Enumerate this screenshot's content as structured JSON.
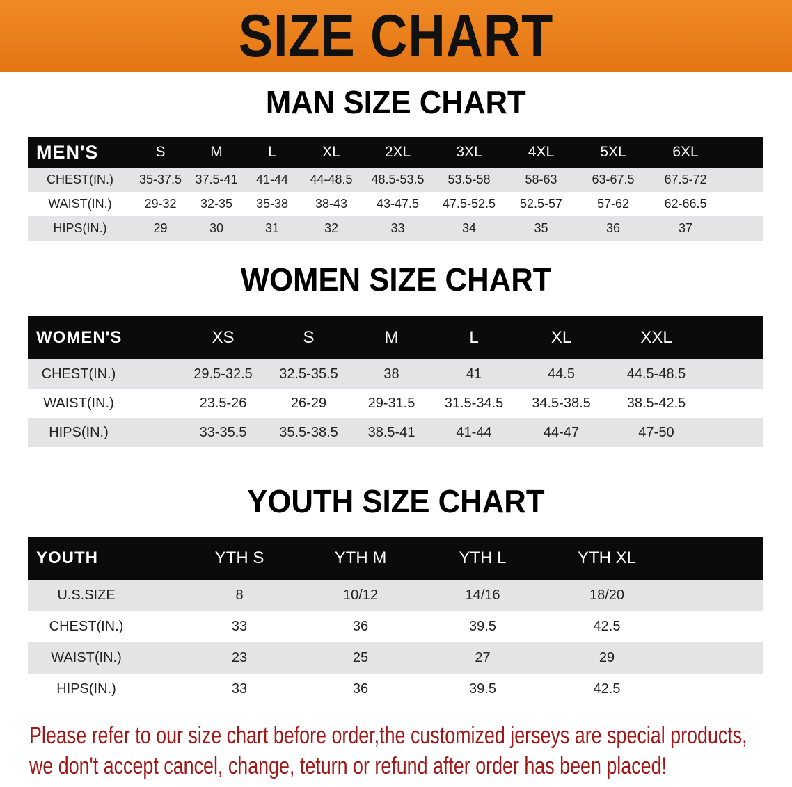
{
  "banner": {
    "title": "SIZE CHART",
    "color": "#e87f1a"
  },
  "men": {
    "title": "MAN SIZE CHART",
    "header": [
      "MEN'S",
      "S",
      "M",
      "L",
      "XL",
      "2XL",
      "3XL",
      "4XL",
      "5XL",
      "6XL"
    ],
    "rows": [
      [
        "CHEST(IN.)",
        "35-37.5",
        "37.5-41",
        "41-44",
        "44-48.5",
        "48.5-53.5",
        "53.5-58",
        "58-63",
        "63-67.5",
        "67.5-72"
      ],
      [
        "WAIST(IN.)",
        "29-32",
        "32-35",
        "35-38",
        "38-43",
        "43-47.5",
        "47.5-52.5",
        "52.5-57",
        "57-62",
        "62-66.5"
      ],
      [
        "HIPS(IN.)",
        "29",
        "30",
        "31",
        "32",
        "33",
        "34",
        "35",
        "36",
        "37"
      ]
    ]
  },
  "women": {
    "title": "WOMEN SIZE CHART",
    "header": [
      "WOMEN'S",
      "XS",
      "S",
      "M",
      "L",
      "XL",
      "XXL"
    ],
    "rows": [
      [
        "CHEST(IN.)",
        "29.5-32.5",
        "32.5-35.5",
        "38",
        "41",
        "44.5",
        "44.5-48.5"
      ],
      [
        "WAIST(IN.)",
        "23.5-26",
        "26-29",
        "29-31.5",
        "31.5-34.5",
        "34.5-38.5",
        "38.5-42.5"
      ],
      [
        "HIPS(IN.)",
        "33-35.5",
        "35.5-38.5",
        "38.5-41",
        "41-44",
        "44-47",
        "47-50"
      ]
    ]
  },
  "youth": {
    "title": "YOUTH SIZE CHART",
    "header": [
      "YOUTH",
      "YTH S",
      "YTH M",
      "YTH L",
      "YTH XL"
    ],
    "rows": [
      [
        "U.S.SIZE",
        "8",
        "10/12",
        "14/16",
        "18/20"
      ],
      [
        "CHEST(IN.)",
        "33",
        "36",
        "39.5",
        "42.5"
      ],
      [
        "WAIST(IN.)",
        "23",
        "25",
        "27",
        "29"
      ],
      [
        "HIPS(IN.)",
        "33",
        "36",
        "39.5",
        "42.5"
      ]
    ]
  },
  "note": {
    "line1": "Please refer to our size chart before order,the customized jerseys are special products,",
    "line2": "we don't accept cancel, change, teturn or refund after order has been placed!",
    "color": "#a01818"
  }
}
